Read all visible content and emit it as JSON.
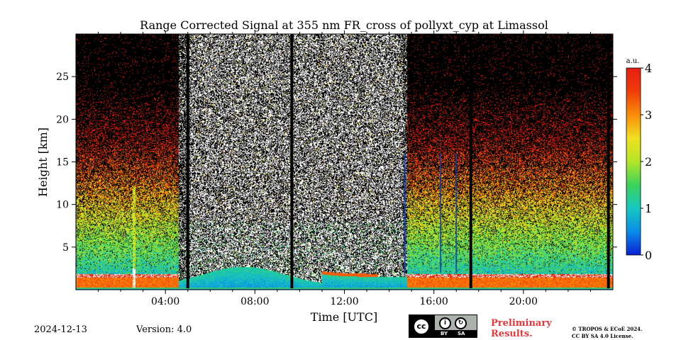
{
  "chart_data": {
    "type": "heatmap",
    "title": "Range Corrected Signal at 355 nm FR_cross of pollyxt_cyp at Limassol",
    "xlabel": "Time [UTC]",
    "ylabel": "Height [km]",
    "xlim_hours": [
      0,
      24
    ],
    "ylim_km": [
      0,
      30
    ],
    "x_ticks": [
      {
        "hour": 4,
        "label": "04:00"
      },
      {
        "hour": 8,
        "label": "08:00"
      },
      {
        "hour": 12,
        "label": "12:00"
      },
      {
        "hour": 16,
        "label": "16:00"
      },
      {
        "hour": 20,
        "label": "20:00"
      }
    ],
    "y_ticks": [
      {
        "km": 5,
        "label": "5"
      },
      {
        "km": 10,
        "label": "10"
      },
      {
        "km": 15,
        "label": "15"
      },
      {
        "km": 20,
        "label": "20"
      },
      {
        "km": 25,
        "label": "25"
      }
    ],
    "colorbar": {
      "unit": "a.u.",
      "min": 0,
      "max": 4,
      "ticks": [
        {
          "value": 0,
          "label": "0"
        },
        {
          "value": 1,
          "label": "1"
        },
        {
          "value": 2,
          "label": "2"
        },
        {
          "value": 3,
          "label": "3"
        },
        {
          "value": 4,
          "label": "4"
        }
      ],
      "colors": [
        "#0a1fd6",
        "#0a8ce8",
        "#16c8c0",
        "#3cd25a",
        "#b4e628",
        "#f0e020",
        "#fa8c0a",
        "#f03c0a",
        "#e61e14"
      ]
    },
    "daylight_noise_hours": [
      4.6,
      14.8
    ],
    "missing_data_hours": [
      5.0,
      9.65,
      17.65,
      23.8
    ],
    "sparse_profile_hours": [
      16.3,
      17.0,
      14.7
    ],
    "boundary_layer_top_km": 1.8,
    "aerosol_plume_hour": 2.6
  },
  "footer": {
    "date": "2024-12-13",
    "version": "Version: 4.0",
    "license_badge": {
      "symbol": "cc",
      "by": "BY",
      "sa": "SA"
    },
    "preliminary_line1": "Preliminary",
    "preliminary_line2": "Results.",
    "copyright_line1": "© TROPOS & ECoE 2024.",
    "copyright_line2": "CC BY SA 4.0 License."
  }
}
